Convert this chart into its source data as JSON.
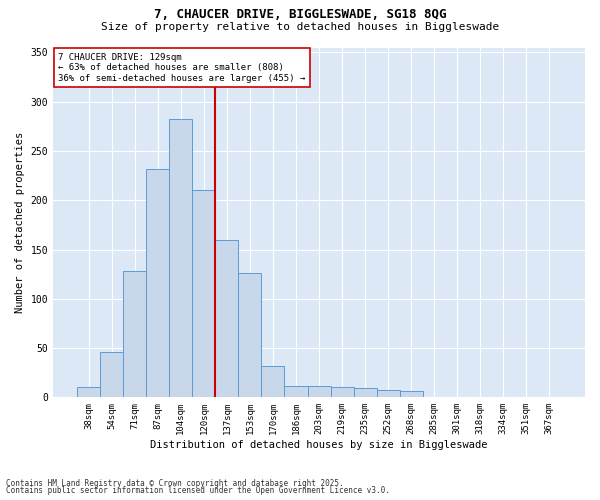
{
  "title1": "7, CHAUCER DRIVE, BIGGLESWADE, SG18 8QG",
  "title2": "Size of property relative to detached houses in Biggleswade",
  "xlabel": "Distribution of detached houses by size in Biggleswade",
  "ylabel": "Number of detached properties",
  "bar_labels": [
    "38sqm",
    "54sqm",
    "71sqm",
    "87sqm",
    "104sqm",
    "120sqm",
    "137sqm",
    "153sqm",
    "170sqm",
    "186sqm",
    "203sqm",
    "219sqm",
    "235sqm",
    "252sqm",
    "268sqm",
    "285sqm",
    "301sqm",
    "318sqm",
    "334sqm",
    "351sqm",
    "367sqm"
  ],
  "bar_values": [
    10,
    46,
    128,
    232,
    282,
    210,
    160,
    126,
    32,
    12,
    11,
    10,
    9,
    7,
    6,
    0,
    0,
    0,
    0,
    0,
    0
  ],
  "bar_color": "#c8d8ea",
  "bar_edge_color": "#5b9bd5",
  "vline_color": "#cc0000",
  "annotation_text": "7 CHAUCER DRIVE: 129sqm\n← 63% of detached houses are smaller (808)\n36% of semi-detached houses are larger (455) →",
  "annotation_box_facecolor": "#ffffff",
  "annotation_box_edgecolor": "#cc0000",
  "ylim": [
    0,
    355
  ],
  "yticks": [
    0,
    50,
    100,
    150,
    200,
    250,
    300,
    350
  ],
  "footer1": "Contains HM Land Registry data © Crown copyright and database right 2025.",
  "footer2": "Contains public sector information licensed under the Open Government Licence v3.0.",
  "plot_bg_color": "#dce8f5",
  "fig_bg_color": "#ffffff",
  "grid_color": "#ffffff",
  "title1_fontsize": 9,
  "title2_fontsize": 8,
  "tick_fontsize": 6.5,
  "ylabel_fontsize": 7.5,
  "xlabel_fontsize": 7.5,
  "annot_fontsize": 6.5,
  "footer_fontsize": 5.5
}
